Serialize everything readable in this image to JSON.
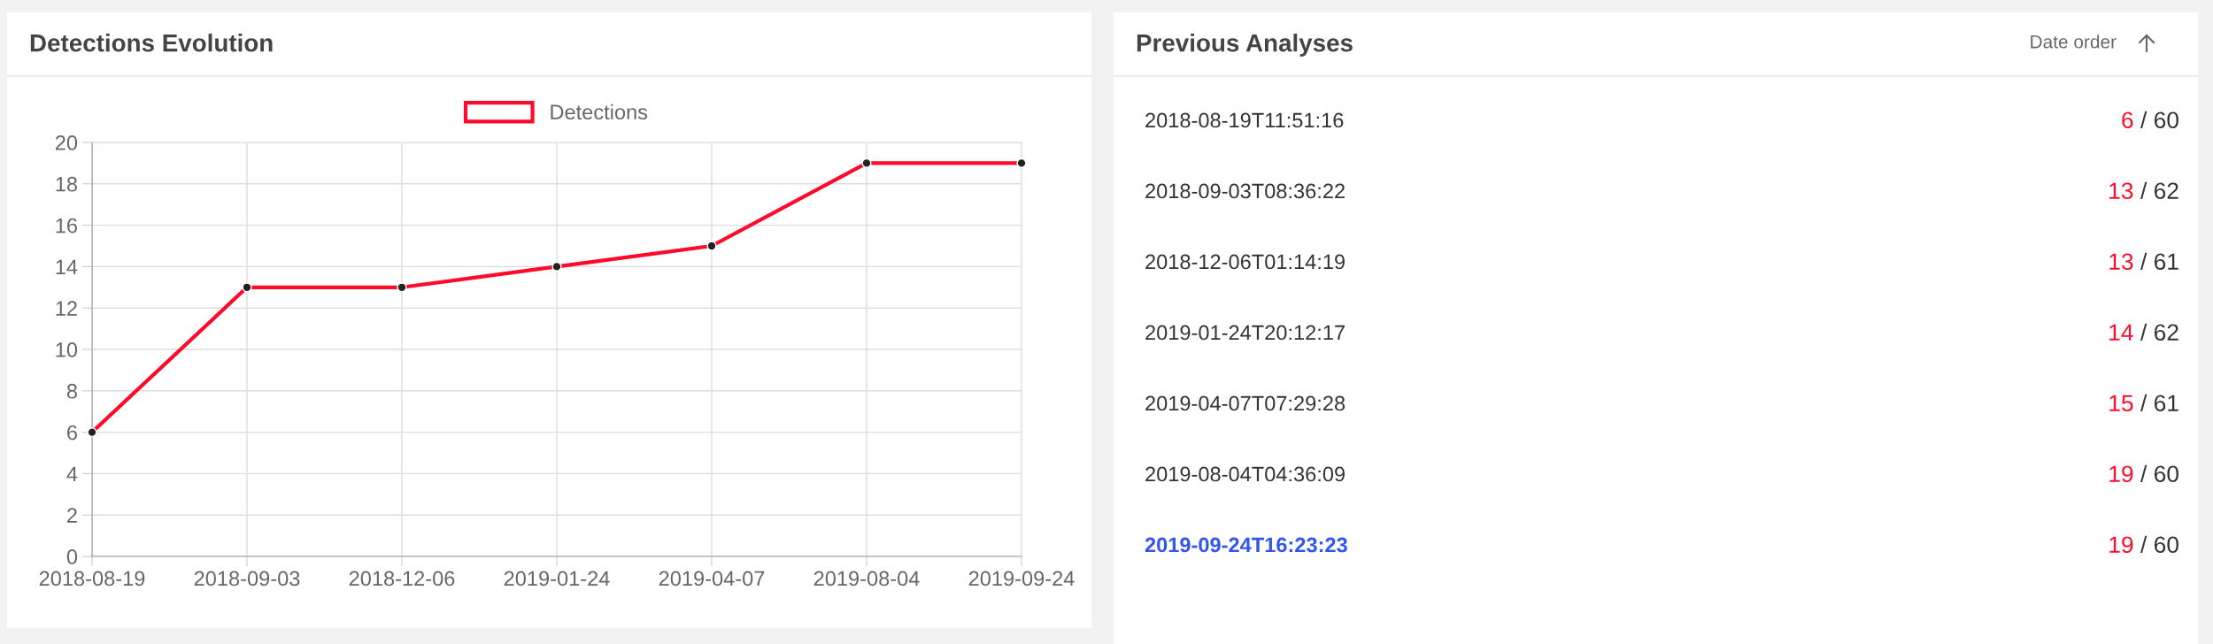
{
  "chart_data": [
    {
      "type": "line",
      "title": "Detections Evolution",
      "categories": [
        "2018-08-19",
        "2018-09-03",
        "2018-12-06",
        "2019-01-24",
        "2019-04-07",
        "2019-08-04",
        "2019-09-24"
      ],
      "series": [
        {
          "name": "Detections",
          "color": "#ff0a2a",
          "values": [
            6,
            13,
            13,
            14,
            15,
            19,
            19
          ]
        }
      ],
      "ylim": [
        0,
        20
      ],
      "yticks": [
        0,
        2,
        4,
        6,
        8,
        10,
        12,
        14,
        16,
        18,
        20
      ],
      "grid": true,
      "legend": "top",
      "marker": "circle",
      "line_style": "solid"
    },
    {
      "type": "other",
      "title": "Previous Analyses",
      "annotations": [
        "Date order",
        "2018-08-19T11:51:16",
        "6 / 60",
        "2018-09-03T08:36:22",
        "13 / 62",
        "2018-12-06T01:14:19",
        "13 / 61",
        "2019-01-24T20:12:17",
        "14 / 62",
        "2019-04-07T07:29:28",
        "15 / 61",
        "2019-08-04T04:36:09",
        "19 / 60",
        "2019-09-24T16:23:23",
        "19 / 60"
      ]
    }
  ]
}
